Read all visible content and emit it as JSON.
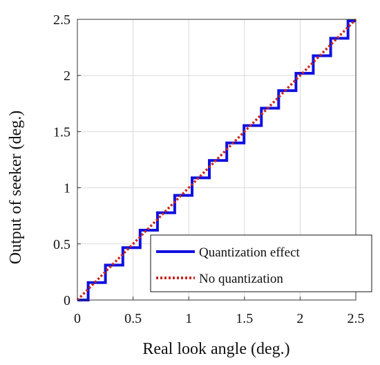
{
  "chart_data": {
    "type": "line",
    "title": "",
    "xlabel": "Real look angle (deg.)",
    "ylabel": "Output of seeker (deg.)",
    "xlim": [
      0,
      2.5
    ],
    "ylim": [
      0,
      2.5
    ],
    "xticks": [
      "0",
      "0.5",
      "1",
      "1.5",
      "2",
      "2.5"
    ],
    "yticks": [
      "0",
      "0.5",
      "1",
      "1.5",
      "2",
      "2.5"
    ],
    "grid": true,
    "legend_position": "bottom-right",
    "series": [
      {
        "name": "Quantization effect",
        "style": "solid-step",
        "color": "#1010e0",
        "x": [
          0.0,
          0.097,
          0.097,
          0.252,
          0.252,
          0.408,
          0.408,
          0.563,
          0.563,
          0.719,
          0.719,
          0.874,
          0.874,
          1.03,
          1.03,
          1.185,
          1.185,
          1.341,
          1.341,
          1.496,
          1.496,
          1.652,
          1.652,
          1.807,
          1.807,
          1.963,
          1.963,
          2.118,
          2.118,
          2.274,
          2.274,
          2.43,
          2.43,
          2.5
        ],
        "y": [
          0.0,
          0.0,
          0.155,
          0.155,
          0.311,
          0.311,
          0.466,
          0.466,
          0.622,
          0.622,
          0.777,
          0.777,
          0.932,
          0.932,
          1.088,
          1.088,
          1.243,
          1.243,
          1.399,
          1.399,
          1.554,
          1.554,
          1.709,
          1.709,
          1.865,
          1.865,
          2.02,
          2.02,
          2.176,
          2.176,
          2.331,
          2.331,
          2.486,
          2.486
        ]
      },
      {
        "name": "No quantization",
        "style": "dotted",
        "color": "#c8281e",
        "x": [
          0,
          2.5
        ],
        "y": [
          0,
          2.5
        ]
      }
    ]
  }
}
